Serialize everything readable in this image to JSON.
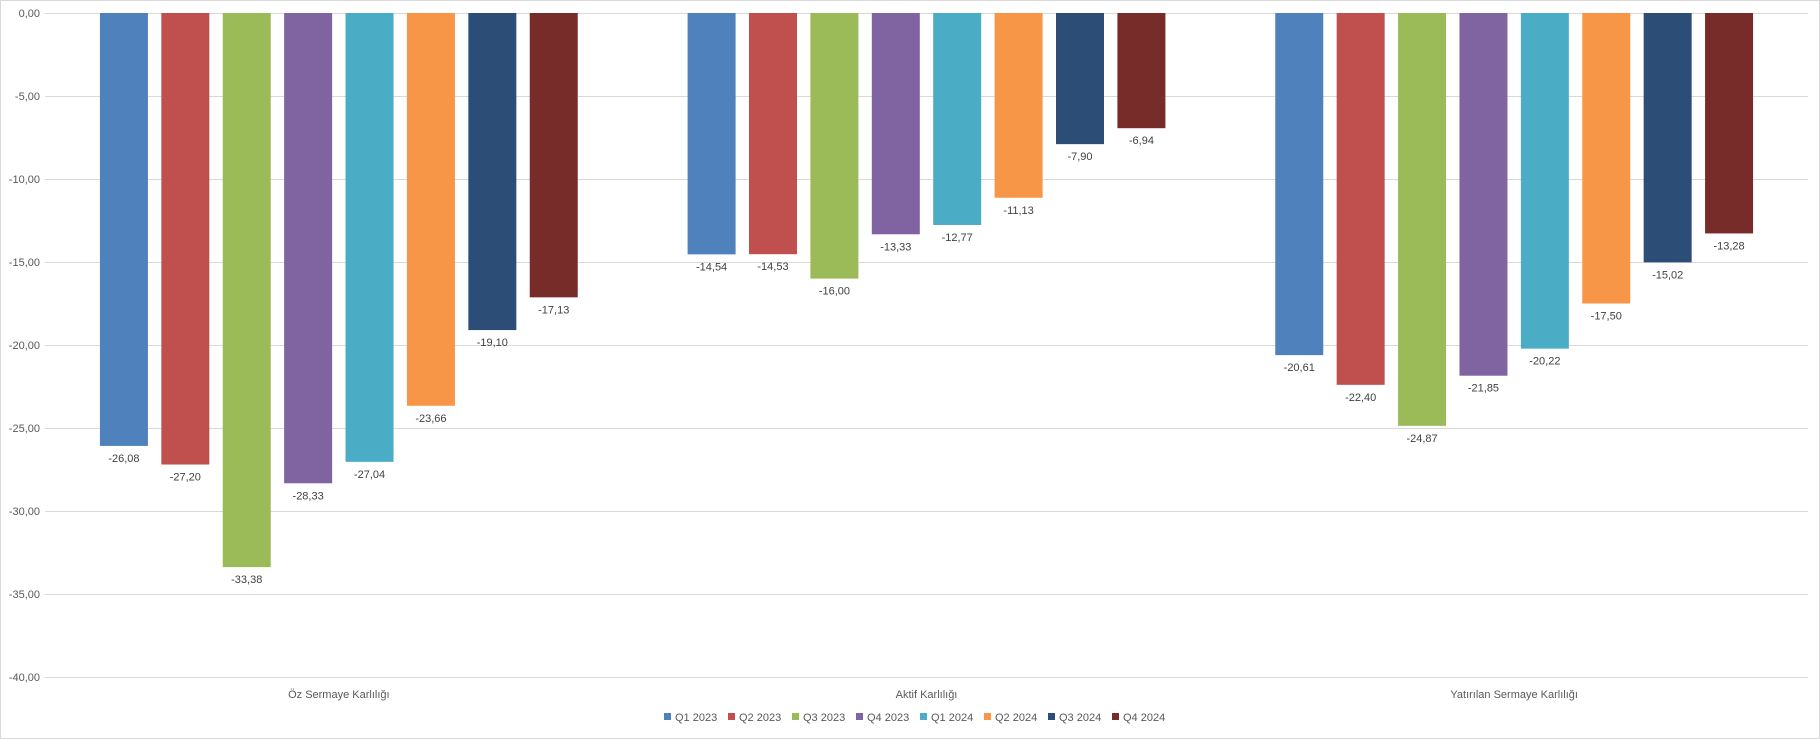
{
  "chart_data": {
    "type": "bar",
    "title": "",
    "xlabel": "",
    "ylabel": "",
    "categories": [
      "Öz Sermaye Karlılığı",
      "Aktif Karlılığı",
      "Yatırılan Sermaye Karlılığı"
    ],
    "ylim": [
      -40,
      0
    ],
    "yticks": [
      0,
      -5,
      -10,
      -15,
      -20,
      -25,
      -30,
      -35,
      -40
    ],
    "ytick_labels": [
      "0,00",
      "-5,00",
      "-10,00",
      "-15,00",
      "-20,00",
      "-25,00",
      "-30,00",
      "-35,00",
      "-40,00"
    ],
    "grid": true,
    "legend_position": "bottom",
    "series": [
      {
        "name": "Q1 2023",
        "color": "#4F81BD",
        "values": [
          -26.08,
          -14.54,
          -20.61
        ],
        "labels": [
          "-26,08",
          "-14,54",
          "-20,61"
        ]
      },
      {
        "name": "Q2 2023",
        "color": "#C0504D",
        "values": [
          -27.2,
          -14.53,
          -22.4
        ],
        "labels": [
          "-27,20",
          "-14,53",
          "-22,40"
        ]
      },
      {
        "name": "Q3 2023",
        "color": "#9BBB59",
        "values": [
          -33.38,
          -16.0,
          -24.87
        ],
        "labels": [
          "-33,38",
          "-16,00",
          "-24,87"
        ]
      },
      {
        "name": "Q4 2023",
        "color": "#8064A2",
        "values": [
          -28.33,
          -13.33,
          -21.85
        ],
        "labels": [
          "-28,33",
          "-13,33",
          "-21,85"
        ]
      },
      {
        "name": "Q1 2024",
        "color": "#4BACC6",
        "values": [
          -27.04,
          -12.77,
          -20.22
        ],
        "labels": [
          "-27,04",
          "-12,77",
          "-20,22"
        ]
      },
      {
        "name": "Q2 2024",
        "color": "#F79646",
        "values": [
          -23.66,
          -11.13,
          -17.5
        ],
        "labels": [
          "-23,66",
          "-11,13",
          "-17,50"
        ]
      },
      {
        "name": "Q3 2024",
        "color": "#2C4D75",
        "values": [
          -19.1,
          -7.9,
          -15.02
        ],
        "labels": [
          "-19,10",
          "-7,90",
          "-15,02"
        ]
      },
      {
        "name": "Q4 2024",
        "color": "#772C2A",
        "values": [
          -17.13,
          -6.94,
          -13.28
        ],
        "labels": [
          "-17,13",
          "-6,94",
          "-13,28"
        ]
      }
    ]
  }
}
